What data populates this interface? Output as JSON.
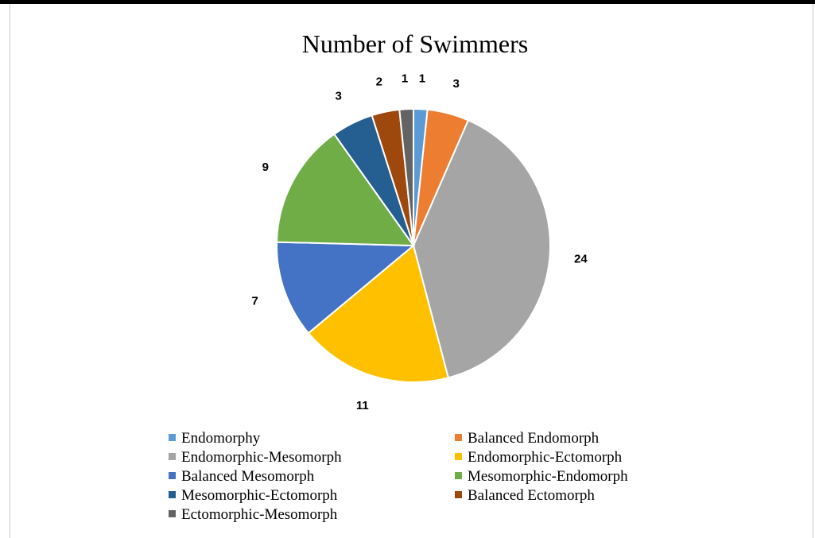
{
  "chart_data": {
    "type": "pie",
    "title": "Number of Swimmers",
    "legend_position": "bottom",
    "slices": [
      {
        "label": "Endomorphy",
        "value": 1,
        "color": "#5B9BD5"
      },
      {
        "label": "Balanced Endomorph",
        "value": 3,
        "color": "#ED7D31"
      },
      {
        "label": "Endomorphic-Mesomorph",
        "value": 24,
        "color": "#A5A5A5"
      },
      {
        "label": "Endomorphic-Ectomorph",
        "value": 11,
        "color": "#FFC000"
      },
      {
        "label": "Balanced Mesomorph",
        "value": 7,
        "color": "#4472C4"
      },
      {
        "label": "Mesomorphic-Endomorph",
        "value": 9,
        "color": "#70AD47"
      },
      {
        "label": "Mesomorphic-Ectomorph",
        "value": 3,
        "color": "#255E91"
      },
      {
        "label": "Balanced Ectomorph",
        "value": 2,
        "color": "#9E480E"
      },
      {
        "label": "Ectomorphic-Mesomorph",
        "value": 1,
        "color": "#636363"
      }
    ]
  }
}
